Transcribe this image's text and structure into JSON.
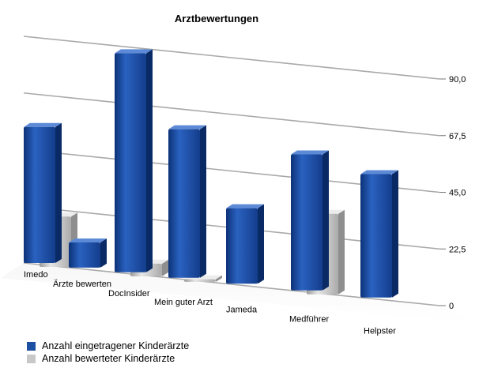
{
  "chart_data": {
    "type": "bar",
    "title": "Arztbewertungen",
    "categories": [
      "Imedo",
      "Ärzte bewerten",
      "DocInsider",
      "Mein guter Arzt",
      "Jameda",
      "Medführer",
      "Helpster"
    ],
    "series": [
      {
        "name": "Anzahl eingetragener Kinderärzte",
        "color": "#1d4fa3",
        "values": [
          54,
          10,
          87,
          59,
          30,
          54,
          49
        ]
      },
      {
        "name": "Anzahl bewerteter Kinderärzte",
        "color": "#c8c8c8",
        "values": [
          20,
          null,
          5,
          1,
          null,
          32,
          null
        ]
      }
    ],
    "y_ticks": [
      "90,0",
      "67,5",
      "45,0",
      "22,5",
      "0"
    ],
    "ylim": [
      0,
      90
    ],
    "legend_position": "bottom-left",
    "grid": true
  }
}
